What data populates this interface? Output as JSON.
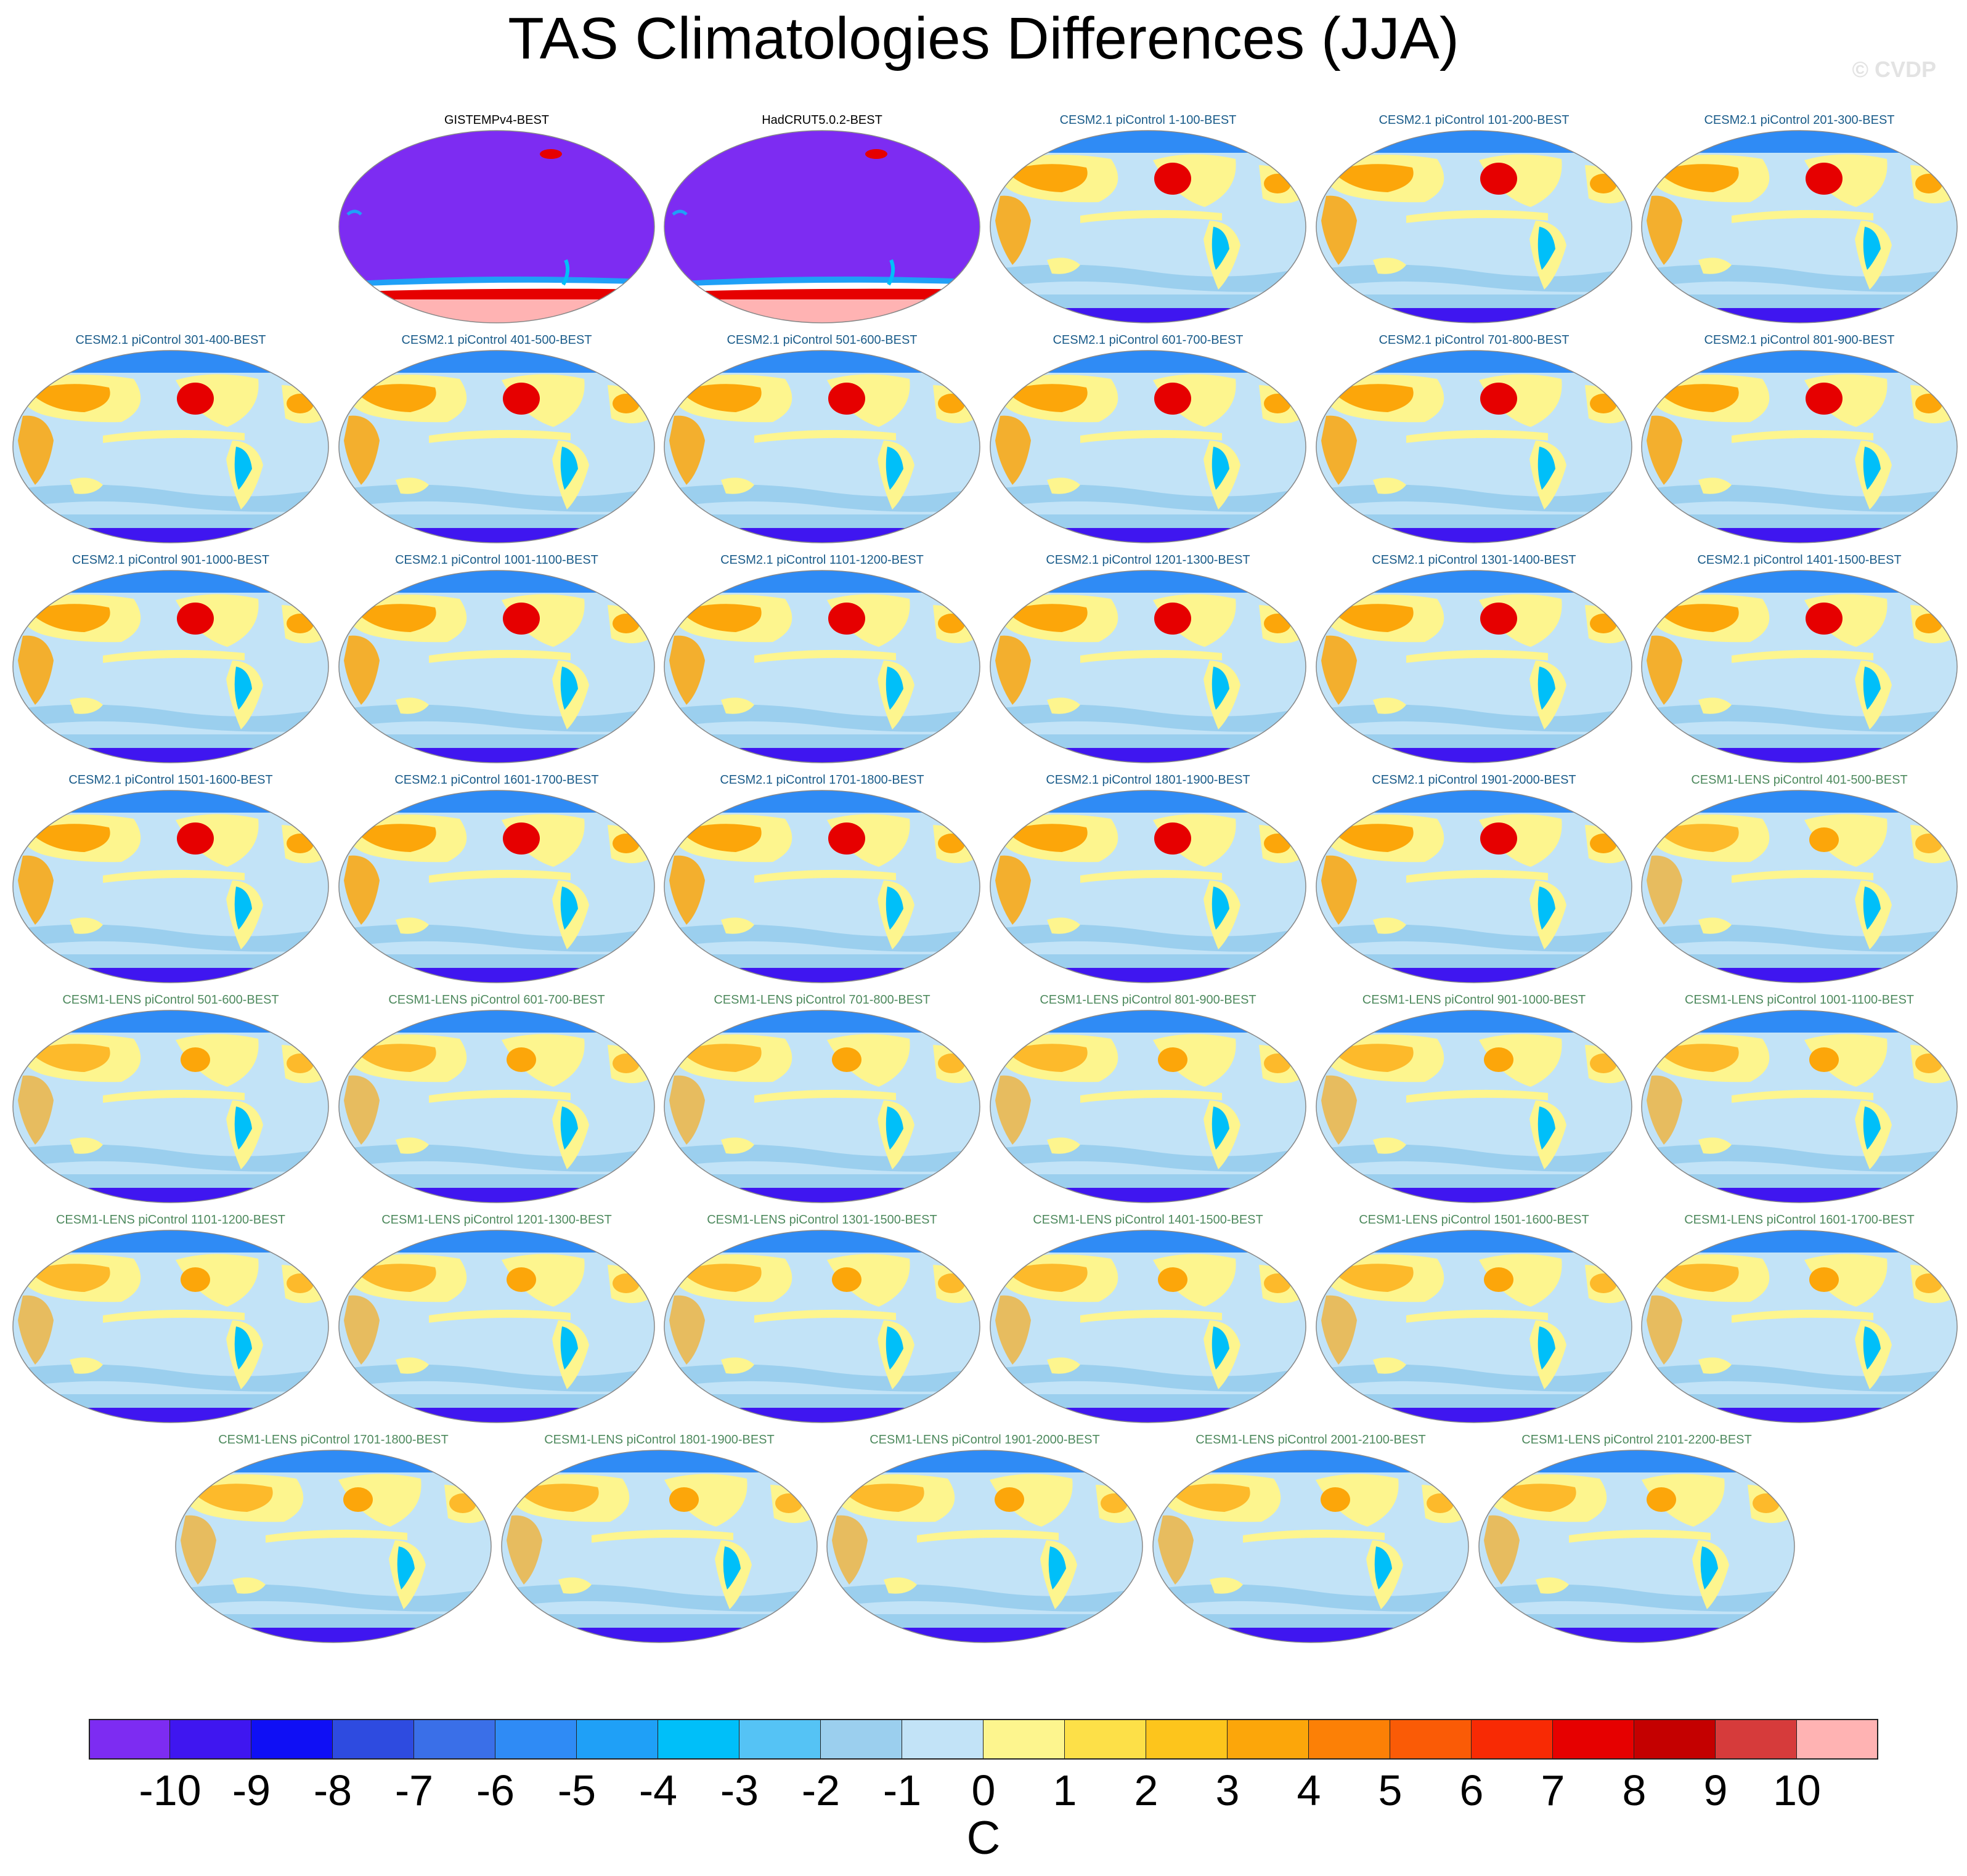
{
  "title": "TAS Climatologies Differences (JJA)",
  "watermark": "© CVDP",
  "panels": [
    {
      "label": "GISTEMPv4-BEST",
      "group": "obs"
    },
    {
      "label": "HadCRUT5.0.2-BEST",
      "group": "obs"
    },
    {
      "label": "CESM2.1 piControl 1-100-BEST",
      "group": "cesm2"
    },
    {
      "label": "CESM2.1 piControl 101-200-BEST",
      "group": "cesm2"
    },
    {
      "label": "CESM2.1 piControl 201-300-BEST",
      "group": "cesm2"
    },
    {
      "label": "CESM2.1 piControl 301-400-BEST",
      "group": "cesm2"
    },
    {
      "label": "CESM2.1 piControl 401-500-BEST",
      "group": "cesm2"
    },
    {
      "label": "CESM2.1 piControl 501-600-BEST",
      "group": "cesm2"
    },
    {
      "label": "CESM2.1 piControl 601-700-BEST",
      "group": "cesm2"
    },
    {
      "label": "CESM2.1 piControl 701-800-BEST",
      "group": "cesm2"
    },
    {
      "label": "CESM2.1 piControl 801-900-BEST",
      "group": "cesm2"
    },
    {
      "label": "CESM2.1 piControl 901-1000-BEST",
      "group": "cesm2"
    },
    {
      "label": "CESM2.1 piControl 1001-1100-BEST",
      "group": "cesm2"
    },
    {
      "label": "CESM2.1 piControl 1101-1200-BEST",
      "group": "cesm2"
    },
    {
      "label": "CESM2.1 piControl 1201-1300-BEST",
      "group": "cesm2"
    },
    {
      "label": "CESM2.1 piControl 1301-1400-BEST",
      "group": "cesm2"
    },
    {
      "label": "CESM2.1 piControl 1401-1500-BEST",
      "group": "cesm2"
    },
    {
      "label": "CESM2.1 piControl 1501-1600-BEST",
      "group": "cesm2"
    },
    {
      "label": "CESM2.1 piControl 1601-1700-BEST",
      "group": "cesm2"
    },
    {
      "label": "CESM2.1 piControl 1701-1800-BEST",
      "group": "cesm2"
    },
    {
      "label": "CESM2.1 piControl 1801-1900-BEST",
      "group": "cesm2"
    },
    {
      "label": "CESM2.1 piControl 1901-2000-BEST",
      "group": "cesm2"
    },
    {
      "label": "CESM1-LENS piControl 401-500-BEST",
      "group": "cesm1"
    },
    {
      "label": "CESM1-LENS piControl 501-600-BEST",
      "group": "cesm1"
    },
    {
      "label": "CESM1-LENS piControl 601-700-BEST",
      "group": "cesm1"
    },
    {
      "label": "CESM1-LENS piControl 701-800-BEST",
      "group": "cesm1"
    },
    {
      "label": "CESM1-LENS piControl 801-900-BEST",
      "group": "cesm1"
    },
    {
      "label": "CESM1-LENS piControl 901-1000-BEST",
      "group": "cesm1"
    },
    {
      "label": "CESM1-LENS piControl 1001-1100-BEST",
      "group": "cesm1"
    },
    {
      "label": "CESM1-LENS piControl 1101-1200-BEST",
      "group": "cesm1"
    },
    {
      "label": "CESM1-LENS piControl 1201-1300-BEST",
      "group": "cesm1"
    },
    {
      "label": "CESM1-LENS piControl 1301-1500-BEST",
      "group": "cesm1"
    },
    {
      "label": "CESM1-LENS piControl 1401-1500-BEST",
      "group": "cesm1"
    },
    {
      "label": "CESM1-LENS piControl 1501-1600-BEST",
      "group": "cesm1"
    },
    {
      "label": "CESM1-LENS piControl 1601-1700-BEST",
      "group": "cesm1"
    },
    {
      "label": "CESM1-LENS piControl 1701-1800-BEST",
      "group": "cesm1"
    },
    {
      "label": "CESM1-LENS piControl 1801-1900-BEST",
      "group": "cesm1"
    },
    {
      "label": "CESM1-LENS piControl 1901-2000-BEST",
      "group": "cesm1"
    },
    {
      "label": "CESM1-LENS piControl 2001-2100-BEST",
      "group": "cesm1"
    },
    {
      "label": "CESM1-LENS piControl 2101-2200-BEST",
      "group": "cesm1"
    }
  ],
  "title_colors": {
    "obs": "#000000",
    "cesm2": "#1a5c8a",
    "cesm1": "#4e8a5e"
  },
  "colorbar": {
    "units": "C",
    "colors": [
      "#7d2cf2",
      "#3f16f0",
      "#0f0ff5",
      "#2e4be0",
      "#3a6fe8",
      "#2f8bf5",
      "#1fa0f7",
      "#00bff9",
      "#55c3f5",
      "#9bcfee",
      "#c2e3f7",
      "#fdf58e",
      "#fde048",
      "#fdc51c",
      "#fca60a",
      "#fc8006",
      "#fa5b06",
      "#f82a04",
      "#e60000",
      "#c40000",
      "#d63b3b",
      "#ffb3b3"
    ],
    "labels": [
      "-10",
      "-9",
      "-8",
      "-7",
      "-6",
      "-5",
      "-4",
      "-3",
      "-2",
      "-1",
      "0",
      "1",
      "2",
      "3",
      "4",
      "5",
      "6",
      "7",
      "8",
      "9",
      "10"
    ]
  }
}
